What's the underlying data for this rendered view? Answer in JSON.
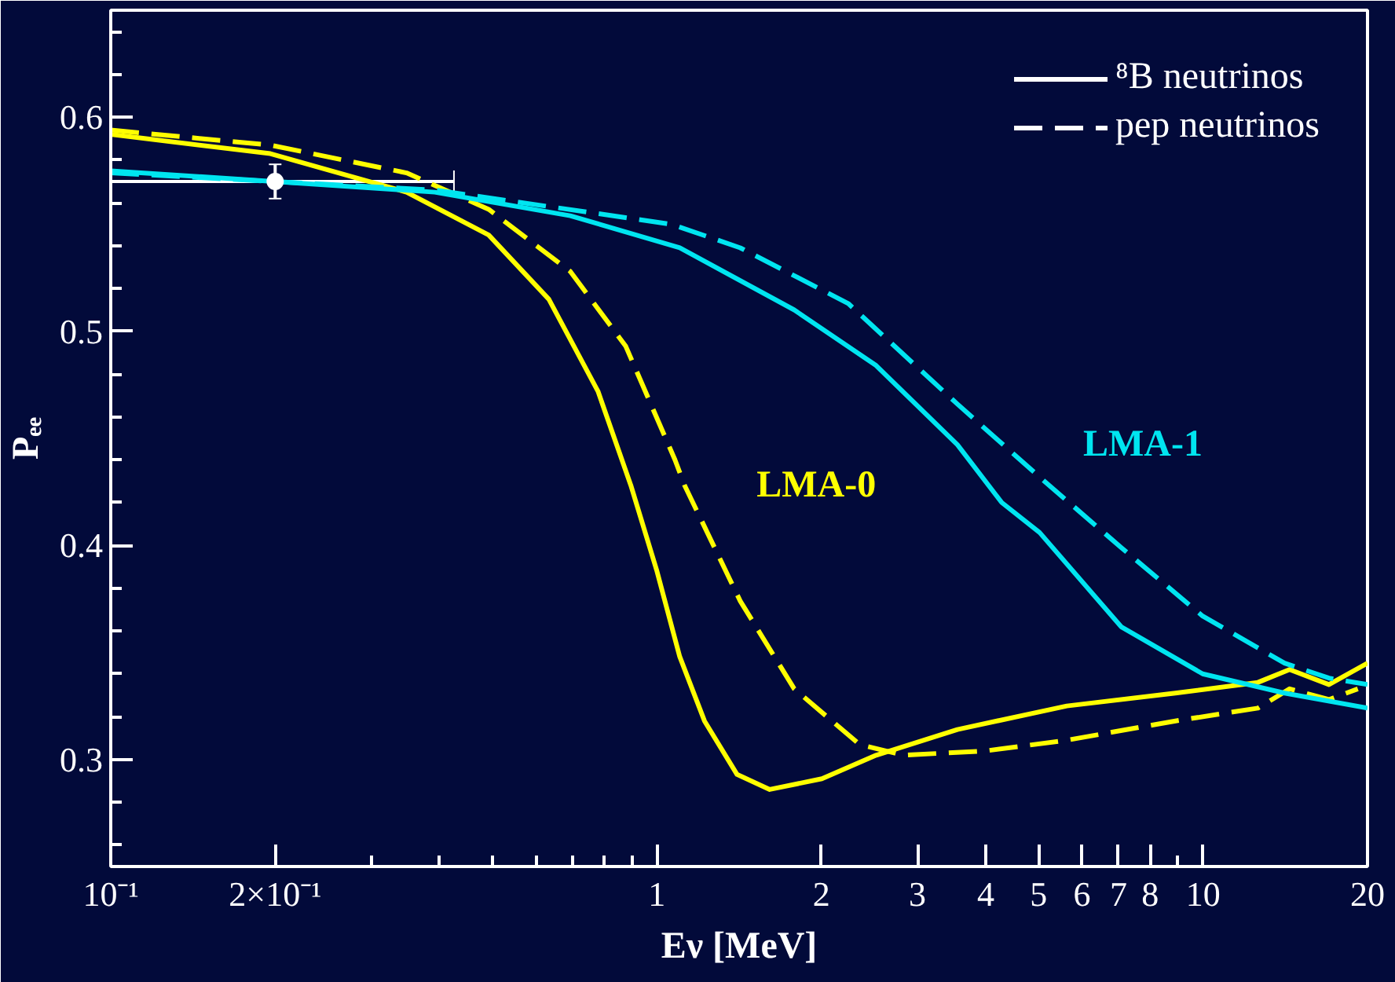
{
  "chart_data": {
    "type": "line",
    "xlabel": "Eν [MeV]",
    "ylabel": "Pₑₑ",
    "log": "x",
    "grid": false,
    "legend": "top right",
    "xlim": [
      0.1,
      20
    ],
    "ylim": [
      0.25,
      0.65
    ],
    "xticks": [
      {
        "value": 0.1,
        "label": "10⁻¹"
      },
      {
        "value": 0.2,
        "label": "2×10⁻¹"
      },
      {
        "value": 0.3,
        "label": null
      },
      {
        "value": 0.4,
        "label": null
      },
      {
        "value": 0.5,
        "label": null
      },
      {
        "value": 0.6,
        "label": null
      },
      {
        "value": 0.7,
        "label": null
      },
      {
        "value": 0.8,
        "label": null
      },
      {
        "value": 0.9,
        "label": null
      },
      1,
      2,
      3,
      4,
      5,
      6,
      7,
      8,
      {
        "value": 9,
        "label": null
      },
      10,
      20
    ],
    "yticks": [
      {
        "value": 0.26,
        "label": null
      },
      {
        "value": 0.28,
        "label": null
      },
      0.3,
      {
        "value": 0.32,
        "label": null
      },
      {
        "value": 0.34,
        "label": null
      },
      {
        "value": 0.36,
        "label": null
      },
      {
        "value": 0.38,
        "label": null
      },
      0.4,
      {
        "value": 0.42,
        "label": null
      },
      {
        "value": 0.44,
        "label": null
      },
      {
        "value": 0.46,
        "label": null
      },
      {
        "value": 0.48,
        "label": null
      },
      0.5,
      {
        "value": 0.52,
        "label": null
      },
      {
        "value": 0.54,
        "label": null
      },
      {
        "value": 0.56,
        "label": null
      },
      {
        "value": 0.58,
        "label": null
      },
      0.6,
      {
        "value": 0.62,
        "label": null
      },
      {
        "value": 0.64,
        "label": null
      }
    ],
    "series": [
      {
        "name": "LMA-0",
        "color": "#ffff00",
        "line_style": "solid",
        "x": [
          0.1,
          0.196,
          0.348,
          0.492,
          0.634,
          0.78,
          0.896,
          1.0,
          1.101,
          1.222,
          1.402,
          1.609,
          2.005,
          2.52,
          3.55,
          5.63,
          8.9,
          12.6,
          14.4,
          17.0,
          20
        ],
        "values": [
          0.592,
          0.583,
          0.565,
          0.545,
          0.515,
          0.472,
          0.428,
          0.388,
          0.348,
          0.318,
          0.293,
          0.286,
          0.291,
          0.302,
          0.314,
          0.325,
          0.331,
          0.336,
          0.342,
          0.335,
          0.345
        ]
      },
      {
        "color": "#ffff00",
        "line_style": "dashed",
        "x": [
          0.1,
          0.196,
          0.348,
          0.492,
          0.694,
          0.877,
          1.079,
          1.124,
          1.421,
          1.784,
          2.35,
          2.83,
          3.99,
          5.63,
          8.9,
          12.6,
          14.4,
          17.0,
          19.2
        ],
        "values": [
          0.594,
          0.587,
          0.574,
          0.557,
          0.528,
          0.493,
          0.44,
          0.428,
          0.374,
          0.333,
          0.307,
          0.302,
          0.304,
          0.309,
          0.318,
          0.324,
          0.333,
          0.328,
          0.333
        ]
      },
      {
        "name": "LMA-1",
        "color": "#00e5f0",
        "line_style": "solid",
        "x": [
          0.1,
          0.392,
          0.694,
          1.101,
          1.784,
          2.52,
          3.55,
          4.28,
          5.02,
          7.08,
          9.98,
          14.1,
          20
        ],
        "values": [
          0.575,
          0.565,
          0.554,
          0.539,
          0.51,
          0.484,
          0.447,
          0.42,
          0.406,
          0.362,
          0.34,
          0.331,
          0.324
        ]
      },
      {
        "color": "#00e5f0",
        "line_style": "dashed",
        "x": [
          0.1,
          0.392,
          1.064,
          1.421,
          2.24,
          3.55,
          5.12,
          7.08,
          9.98,
          14.1,
          17.0,
          20
        ],
        "values": [
          0.574,
          0.566,
          0.55,
          0.539,
          0.513,
          0.466,
          0.43,
          0.399,
          0.367,
          0.345,
          0.338,
          0.335
        ]
      },
      {
        "type": "scatter",
        "color": "#ffffff",
        "marker": "circle",
        "x": [
          0.2
        ],
        "values": [
          0.57
        ],
        "errors": [
          0.008
        ],
        "xerrors": [
          [
            0.1,
            0.425
          ]
        ]
      },
      {
        "name": "⁸B neutrinos",
        "color": "#ffffff",
        "line_style": "solid",
        "values": [
          null
        ]
      },
      {
        "name": "pep neutrinos",
        "color": "#ffffff",
        "line_style": "dashed",
        "values": [
          null
        ]
      }
    ]
  }
}
